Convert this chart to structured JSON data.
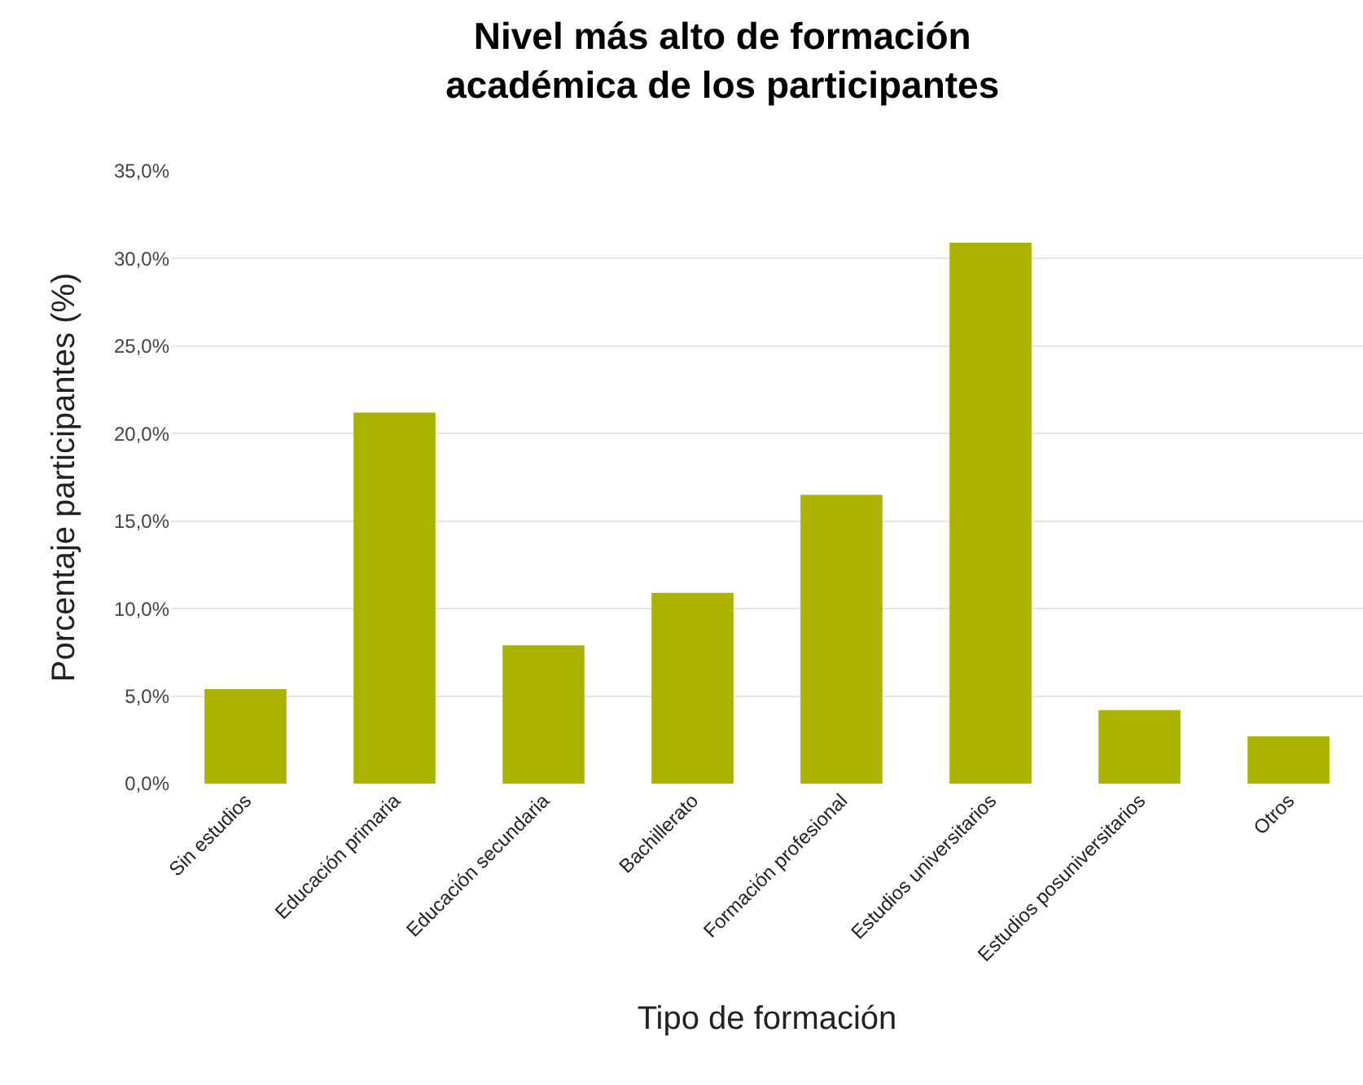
{
  "chart_data": {
    "type": "bar",
    "title": "Nivel más alto de formación\nacadémica de los participantes",
    "xlabel": "Tipo de formación",
    "ylabel": "Porcentaje participantes (%)",
    "categories": [
      "Sin estudios",
      "Educación primaria",
      "Educación secundaria",
      "Bachillerato",
      "Formación profesional",
      "Estudios universitarios",
      "Estudios posuniversitarios",
      "Otros"
    ],
    "values": [
      5.4,
      21.2,
      7.9,
      10.9,
      16.5,
      30.9,
      4.2,
      2.7
    ],
    "color": "#aab400",
    "ylim": [
      0,
      35
    ],
    "yticks": [
      {
        "value": 0,
        "label": "0,0%"
      },
      {
        "value": 5,
        "label": "5,0%"
      },
      {
        "value": 10,
        "label": "10,0%"
      },
      {
        "value": 15,
        "label": "15,0%"
      },
      {
        "value": 20,
        "label": "20,0%"
      },
      {
        "value": 25,
        "label": "25,0%"
      },
      {
        "value": 30,
        "label": "30,0%"
      },
      {
        "value": 35,
        "label": "35,0%"
      }
    ],
    "grid": "y"
  }
}
